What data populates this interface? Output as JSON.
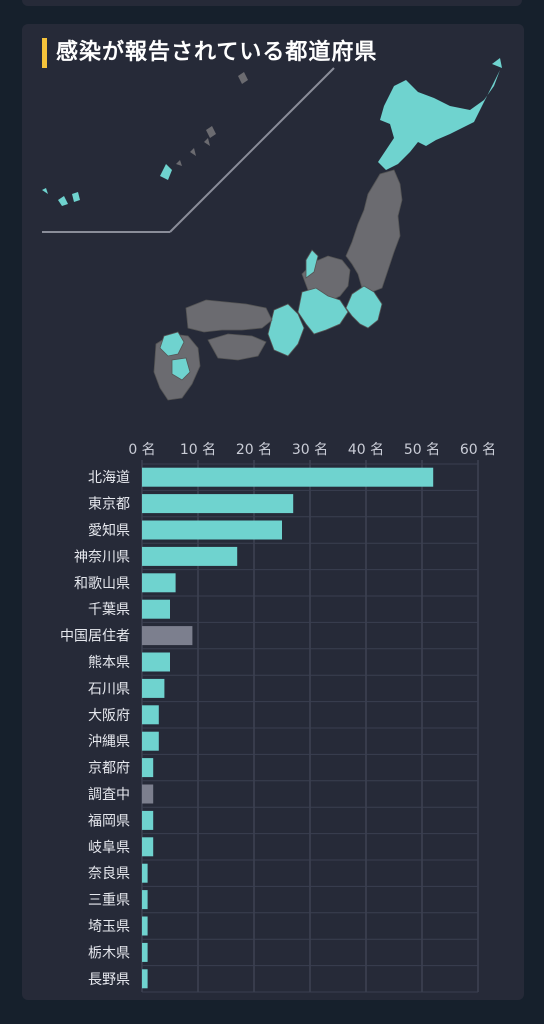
{
  "title": "感染が報告されている都道府県",
  "colors": {
    "background": "#16202c",
    "card": "#262a38",
    "accent_bar": "#f5c33b",
    "bar_reported": "#6fd3cf",
    "bar_other": "#7c7f8e",
    "map_infected": "#6fd3cf",
    "map_other": "#6b6b70"
  },
  "map": {
    "infected_regions": [
      "北海道",
      "東京都",
      "愛知県",
      "神奈川県",
      "和歌山県",
      "千葉県",
      "熊本県",
      "石川県",
      "大阪府",
      "沖縄県",
      "京都府",
      "福岡県",
      "岐阜県",
      "奈良県",
      "三重県",
      "埼玉県",
      "栃木県",
      "長野県"
    ]
  },
  "chart_data": {
    "type": "bar",
    "orientation": "horizontal",
    "x_ticks": [
      "0 名",
      "10 名",
      "20 名",
      "30 名",
      "40 名",
      "50 名",
      "60 名"
    ],
    "xlim": [
      0,
      60
    ],
    "grid": true,
    "categories": [
      "北海道",
      "東京都",
      "愛知県",
      "神奈川県",
      "和歌山県",
      "千葉県",
      "中国居住者",
      "熊本県",
      "石川県",
      "大阪府",
      "沖縄県",
      "京都府",
      "調査中",
      "福岡県",
      "岐阜県",
      "奈良県",
      "三重県",
      "埼玉県",
      "栃木県",
      "長野県"
    ],
    "values": [
      52,
      27,
      25,
      17,
      6,
      5,
      9,
      5,
      4,
      3,
      3,
      2,
      2,
      2,
      2,
      1,
      1,
      1,
      1,
      1
    ],
    "bar_colors": [
      "reported",
      "reported",
      "reported",
      "reported",
      "reported",
      "reported",
      "other",
      "reported",
      "reported",
      "reported",
      "reported",
      "reported",
      "other",
      "reported",
      "reported",
      "reported",
      "reported",
      "reported",
      "reported",
      "reported"
    ]
  }
}
